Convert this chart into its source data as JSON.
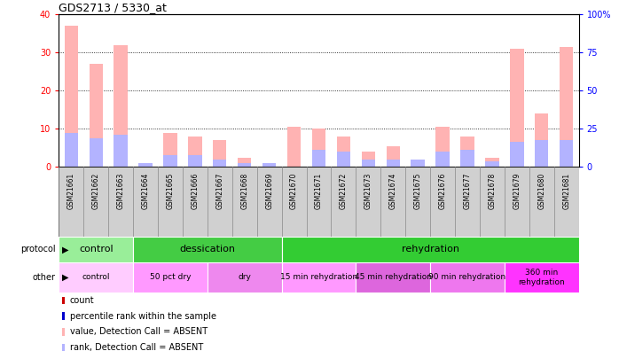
{
  "title": "GDS2713 / 5330_at",
  "samples": [
    "GSM21661",
    "GSM21662",
    "GSM21663",
    "GSM21664",
    "GSM21665",
    "GSM21666",
    "GSM21667",
    "GSM21668",
    "GSM21669",
    "GSM21670",
    "GSM21671",
    "GSM21672",
    "GSM21673",
    "GSM21674",
    "GSM21675",
    "GSM21676",
    "GSM21677",
    "GSM21678",
    "GSM21679",
    "GSM21680",
    "GSM21681"
  ],
  "value_absent": [
    37,
    27,
    32,
    0,
    9,
    8,
    7,
    2.5,
    0,
    10.5,
    10,
    8,
    4,
    5.5,
    0,
    10.5,
    8,
    2.5,
    31,
    14,
    31.5
  ],
  "rank_absent": [
    9,
    7.5,
    8.5,
    1,
    3,
    3,
    2,
    1,
    1,
    0,
    4.5,
    4,
    2,
    2,
    2,
    4,
    4.5,
    1.5,
    6.5,
    7,
    7
  ],
  "ylim_left": [
    0,
    40
  ],
  "ylim_right": [
    0,
    100
  ],
  "yticks_left": [
    0,
    10,
    20,
    30,
    40
  ],
  "yticks_right": [
    0,
    25,
    50,
    75,
    100
  ],
  "yticklabels_right": [
    "0",
    "25",
    "50",
    "75",
    "100%"
  ],
  "color_value_absent": "#ffb3b3",
  "color_rank_absent": "#b3b3ff",
  "color_count": "#cc0000",
  "color_percentile": "#0000cc",
  "protocol_groups": [
    {
      "label": "control",
      "start": 0,
      "end": 3,
      "color": "#99ee99"
    },
    {
      "label": "dessication",
      "start": 3,
      "end": 9,
      "color": "#44cc44"
    },
    {
      "label": "rehydration",
      "start": 9,
      "end": 21,
      "color": "#33cc33"
    }
  ],
  "other_groups": [
    {
      "label": "control",
      "start": 0,
      "end": 3,
      "color": "#ffccff"
    },
    {
      "label": "50 pct dry",
      "start": 3,
      "end": 6,
      "color": "#ff99ff"
    },
    {
      "label": "dry",
      "start": 6,
      "end": 9,
      "color": "#ee88ee"
    },
    {
      "label": "15 min rehydration",
      "start": 9,
      "end": 12,
      "color": "#ff99ff"
    },
    {
      "label": "45 min rehydration",
      "start": 12,
      "end": 15,
      "color": "#dd66dd"
    },
    {
      "label": "90 min rehydration",
      "start": 15,
      "end": 18,
      "color": "#ee77ee"
    },
    {
      "label": "360 min\nrehydration",
      "start": 18,
      "end": 21,
      "color": "#ff33ff"
    }
  ],
  "bar_width": 0.55,
  "legend_items": [
    {
      "label": "count",
      "color": "#cc0000"
    },
    {
      "label": "percentile rank within the sample",
      "color": "#0000cc"
    },
    {
      "label": "value, Detection Call = ABSENT",
      "color": "#ffb3b3"
    },
    {
      "label": "rank, Detection Call = ABSENT",
      "color": "#b3b3ff"
    }
  ],
  "label_area_color": "#d0d0d0",
  "label_border_color": "#888888"
}
